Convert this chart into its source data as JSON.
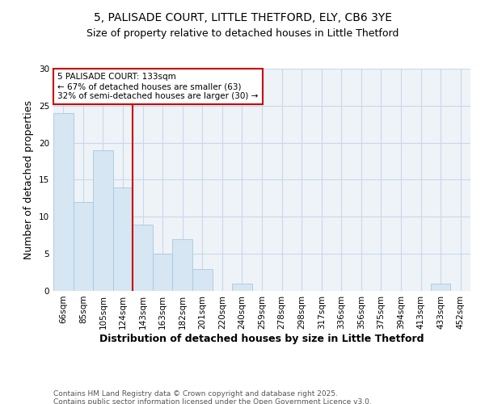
{
  "title_line1": "5, PALISADE COURT, LITTLE THETFORD, ELY, CB6 3YE",
  "title_line2": "Size of property relative to detached houses in Little Thetford",
  "xlabel": "Distribution of detached houses by size in Little Thetford",
  "ylabel": "Number of detached properties",
  "bins": [
    "66sqm",
    "85sqm",
    "105sqm",
    "124sqm",
    "143sqm",
    "163sqm",
    "182sqm",
    "201sqm",
    "220sqm",
    "240sqm",
    "259sqm",
    "278sqm",
    "298sqm",
    "317sqm",
    "336sqm",
    "356sqm",
    "375sqm",
    "394sqm",
    "413sqm",
    "433sqm",
    "452sqm"
  ],
  "values": [
    24,
    12,
    19,
    14,
    9,
    5,
    7,
    3,
    0,
    1,
    0,
    0,
    0,
    0,
    0,
    0,
    0,
    0,
    0,
    1,
    0
  ],
  "bar_color": "#d6e6f2",
  "bar_edge_color": "#a8c8e0",
  "vline_color": "#cc0000",
  "annotation_text": "5 PALISADE COURT: 133sqm\n← 67% of detached houses are smaller (63)\n32% of semi-detached houses are larger (30) →",
  "annotation_box_color": "#ffffff",
  "annotation_box_edge": "#cc0000",
  "ylim": [
    0,
    30
  ],
  "yticks": [
    0,
    5,
    10,
    15,
    20,
    25,
    30
  ],
  "bg_color": "#ffffff",
  "plot_bg_color": "#eef3f8",
  "grid_color": "#c8d8e8",
  "footer_text": "Contains HM Land Registry data © Crown copyright and database right 2025.\nContains public sector information licensed under the Open Government Licence v3.0.",
  "title_fontsize": 10,
  "subtitle_fontsize": 9,
  "axis_label_fontsize": 9,
  "tick_fontsize": 7.5,
  "annotation_fontsize": 7.5,
  "footer_fontsize": 6.5
}
